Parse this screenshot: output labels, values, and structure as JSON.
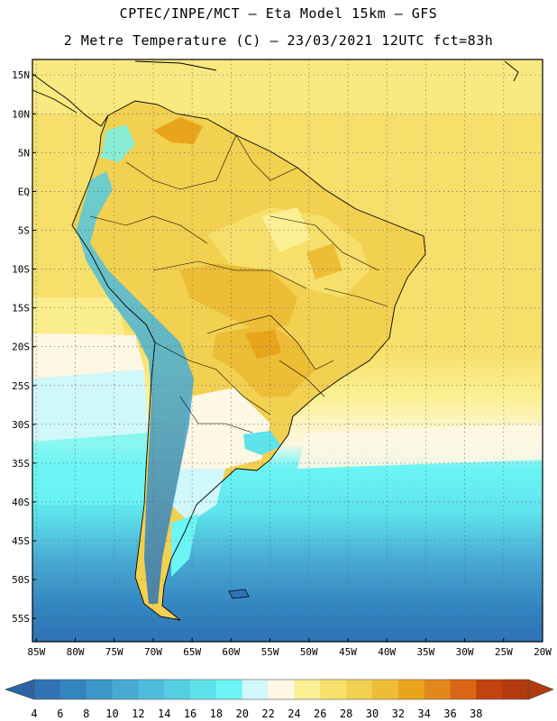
{
  "header": {
    "line1": "CPTEC/INPE/MCT –  Eta Model 15km – GFS",
    "line2": "2 Metre Temperature (C) – 23/03/2021 12UTC fct=83h"
  },
  "map": {
    "lat_labels": [
      "15N",
      "10N",
      "5N",
      "EQ",
      "5S",
      "10S",
      "15S",
      "20S",
      "25S",
      "30S",
      "35S",
      "40S",
      "45S",
      "50S",
      "55S"
    ],
    "lat_values": [
      15,
      10,
      5,
      0,
      -5,
      -10,
      -15,
      -20,
      -25,
      -30,
      -35,
      -40,
      -45,
      -50,
      -55
    ],
    "lon_labels": [
      "85W",
      "80W",
      "75W",
      "70W",
      "65W",
      "60W",
      "55W",
      "50W",
      "45W",
      "40W",
      "35W",
      "30W",
      "25W",
      "20W"
    ],
    "lon_values": [
      -85,
      -80,
      -75,
      -70,
      -65,
      -60,
      -55,
      -50,
      -45,
      -40,
      -35,
      -30,
      -25,
      -20
    ],
    "lat_range": [
      -58,
      17
    ],
    "lon_range": [
      -85.5,
      -20
    ]
  },
  "colorbar": {
    "ticks": [
      "4",
      "6",
      "8",
      "10",
      "12",
      "14",
      "16",
      "18",
      "20",
      "22",
      "24",
      "26",
      "28",
      "30",
      "32",
      "34",
      "36",
      "38"
    ],
    "colors": [
      "#2f73b5",
      "#3385c0",
      "#3d98ca",
      "#48aad3",
      "#4fbcdc",
      "#56cfe3",
      "#5ee2ec",
      "#6cf5f5",
      "#d0f8fb",
      "#fdf7e3",
      "#fbf093",
      "#f7df6b",
      "#f2d050",
      "#edbd36",
      "#e8a51c",
      "#e2881a",
      "#d96614",
      "#c24310",
      "#b33a0e"
    ],
    "left_arrow_color": "#2c64a5",
    "right_arrow_color": "#b33a0e"
  }
}
